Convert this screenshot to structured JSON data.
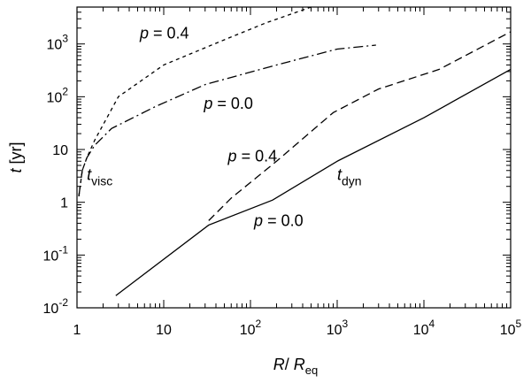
{
  "chart_data": {
    "type": "line",
    "title": "",
    "x_scale": "log",
    "y_scale": "log",
    "xlim": [
      1,
      100000
    ],
    "ylim": [
      0.01,
      5000
    ],
    "grid": false,
    "xlabel": {
      "main": "R",
      "sep": "/ ",
      "var": "R",
      "sub": "eq"
    },
    "ylabel": {
      "var": "t",
      "unit": " [yr]"
    },
    "x_ticks": [
      {
        "value": 1,
        "base": "1",
        "exp": ""
      },
      {
        "value": 10,
        "base": "10",
        "exp": ""
      },
      {
        "value": 100,
        "base": "10",
        "exp": "2"
      },
      {
        "value": 1000,
        "base": "10",
        "exp": "3"
      },
      {
        "value": 10000,
        "base": "10",
        "exp": "4"
      },
      {
        "value": 100000,
        "base": "10",
        "exp": "5"
      }
    ],
    "y_ticks": [
      {
        "value": 0.01,
        "base": "10",
        "exp": "-2"
      },
      {
        "value": 0.1,
        "base": "10",
        "exp": "-1"
      },
      {
        "value": 1,
        "base": "1",
        "exp": ""
      },
      {
        "value": 10,
        "base": "10",
        "exp": ""
      },
      {
        "value": 100,
        "base": "10",
        "exp": "2"
      },
      {
        "value": 1000,
        "base": "10",
        "exp": "3"
      }
    ],
    "series": [
      {
        "id": "tdyn-p00",
        "style": "solid",
        "x": [
          2.8,
          33,
          180,
          1000,
          10000,
          100000
        ],
        "y": [
          0.017,
          0.37,
          1.1,
          6,
          40,
          330
        ]
      },
      {
        "id": "tdyn-p04",
        "style": "dashed",
        "x": [
          33,
          60,
          200,
          900,
          3000,
          15000,
          100000
        ],
        "y": [
          0.45,
          1.2,
          6,
          50,
          140,
          330,
          1700
        ]
      },
      {
        "id": "tvisc-p00",
        "style": "dashdot",
        "x": [
          1.05,
          1.15,
          1.3,
          1.6,
          2.5,
          8,
          30,
          200,
          1000,
          2800
        ],
        "y": [
          1.3,
          4,
          7,
          12,
          25,
          65,
          170,
          400,
          800,
          950
        ]
      },
      {
        "id": "tvisc-p04",
        "style": "dotted",
        "x": [
          1.05,
          1.15,
          1.3,
          1.6,
          3,
          10,
          50,
          150,
          500
        ],
        "y": [
          1.3,
          4,
          7,
          15,
          100,
          400,
          1200,
          2500,
          5000
        ]
      }
    ],
    "annotations": [
      {
        "id": "p04-top",
        "prefix": "p",
        "text": " = 0.4",
        "x": 5.3,
        "y": 1600
      },
      {
        "id": "p00-mid",
        "prefix": "p",
        "text": " = 0.0",
        "x": 29,
        "y": 74
      },
      {
        "id": "p04-mid",
        "prefix": "p",
        "text": " = 0.4",
        "x": 55,
        "y": 7.5
      },
      {
        "id": "p00-low",
        "prefix": "p",
        "text": " = 0.0",
        "x": 110,
        "y": 0.45
      },
      {
        "id": "tvisc",
        "main": "t",
        "sub": "visc",
        "x": 1.3,
        "y": 3.3
      },
      {
        "id": "tdyn",
        "main": "t",
        "sub": "dyn",
        "x": 1000,
        "y": 3.3
      }
    ]
  }
}
